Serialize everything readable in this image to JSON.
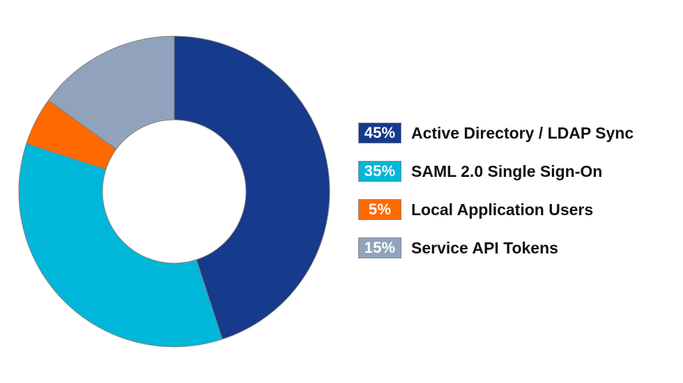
{
  "chart_data": {
    "type": "pie",
    "variant": "donut",
    "title": "",
    "slices": [
      {
        "label": "Active Directory / LDAP Sync",
        "value": 45,
        "display": "45%",
        "color": "#163a8c"
      },
      {
        "label": "SAML 2.0 Single Sign-On",
        "value": 35,
        "display": "35%",
        "color": "#00b7d9"
      },
      {
        "label": "Local Application Users",
        "value": 5,
        "display": "5%",
        "color": "#ff6a00"
      },
      {
        "label": "Service API Tokens",
        "value": 15,
        "display": "15%",
        "color": "#91a3bc"
      }
    ],
    "legend_position": "right"
  }
}
